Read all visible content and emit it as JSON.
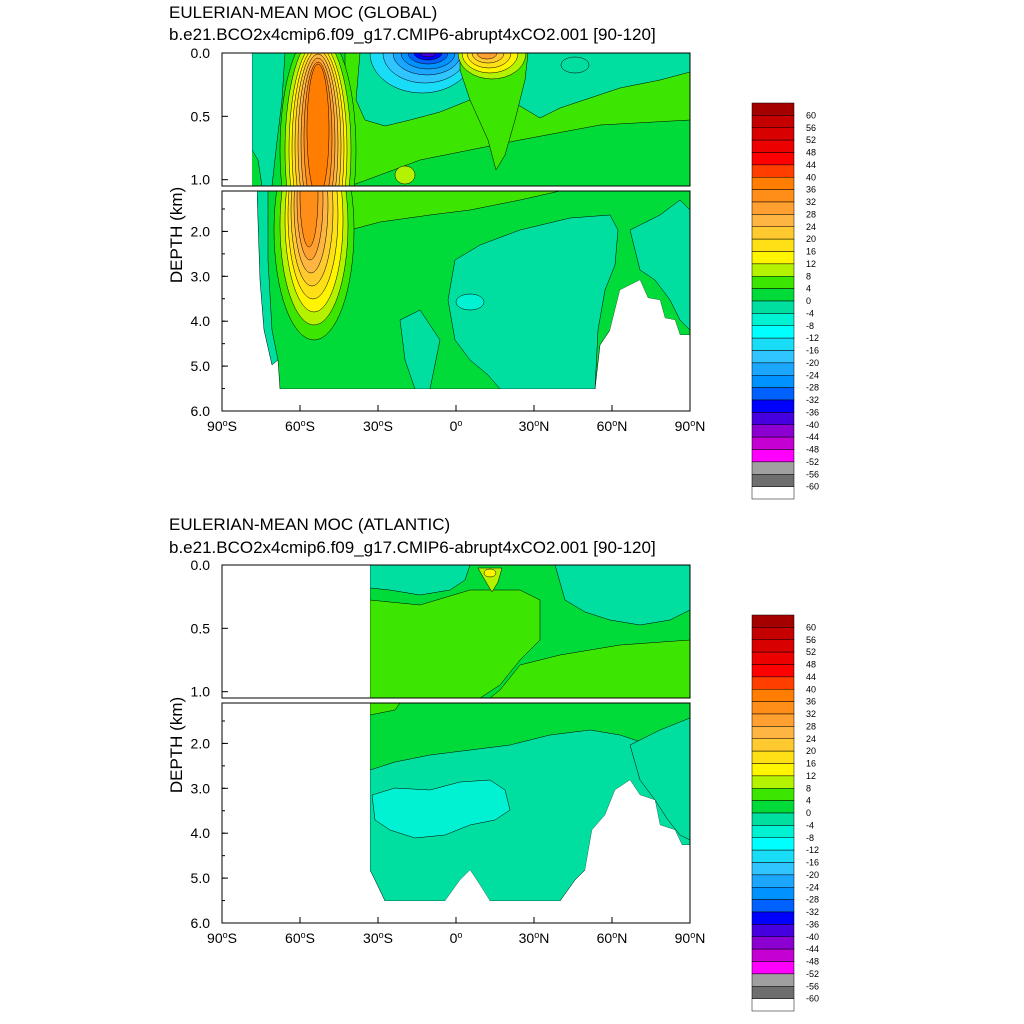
{
  "chart_data": [
    {
      "type": "contour",
      "title": "EULERIAN-MEAN MOC (GLOBAL)",
      "subtitle": "b.e21.BCO2x4cmip6.f09_g17.CMIP6-abrupt4xCO2.001 [90-120]",
      "ylabel": "DEPTH (km)",
      "xlim": [
        -90,
        90
      ],
      "ylim": [
        6.0,
        0.0
      ],
      "x_ticks": [
        "90°S",
        "60°S",
        "30°S",
        "0°",
        "30°N",
        "60°N",
        "90°N"
      ],
      "y_ticks_upper": [
        "0.0",
        "0.5",
        "1.0"
      ],
      "y_ticks_lower": [
        "2.0",
        "3.0",
        "4.0",
        "5.0",
        "6.0"
      ],
      "features": [
        {
          "name": "southern ocean cell",
          "lat": -55,
          "depth": 0.3,
          "max": 40
        },
        {
          "name": "tropical negative cell",
          "lat": -12,
          "depth": 0.05,
          "min": -36
        },
        {
          "name": "tropical positive cell",
          "lat": 10,
          "depth": 0.05,
          "max": 20
        },
        {
          "name": "deep negative cell",
          "lat": 20,
          "depth": 3.5,
          "min": -8
        }
      ]
    },
    {
      "type": "contour",
      "title": "EULERIAN-MEAN MOC (ATLANTIC)",
      "subtitle": "b.e21.BCO2x4cmip6.f09_g17.CMIP6-abrupt4xCO2.001 [90-120]",
      "ylabel": "DEPTH (km)",
      "xlim": [
        -90,
        90
      ],
      "ylim": [
        6.0,
        0.0
      ],
      "x_ticks": [
        "90°S",
        "60°S",
        "30°S",
        "0°",
        "30°N",
        "60°N",
        "90°N"
      ],
      "y_ticks_upper": [
        "0.0",
        "0.5",
        "1.0"
      ],
      "y_ticks_lower": [
        "2.0",
        "3.0",
        "4.0",
        "5.0",
        "6.0"
      ],
      "features": [
        {
          "name": "upper positive cell",
          "lat": 13,
          "depth": 0.1,
          "max": 12
        },
        {
          "name": "deep negative cell",
          "lat": -10,
          "depth": 3.6,
          "min": -8
        }
      ]
    }
  ],
  "colorbar": {
    "labels": [
      "60",
      "56",
      "52",
      "48",
      "44",
      "40",
      "36",
      "32",
      "28",
      "24",
      "20",
      "16",
      "12",
      "8",
      "4",
      "0",
      "-4",
      "-8",
      "-12",
      "-16",
      "-20",
      "-24",
      "-28",
      "-32",
      "-36",
      "-40",
      "-44",
      "-48",
      "-52",
      "-56",
      "-60"
    ],
    "colors": [
      "#a50000",
      "#c40000",
      "#d80000",
      "#ec0000",
      "#ff0000",
      "#ff3e00",
      "#ff7d00",
      "#ff8e18",
      "#ffa030",
      "#ffb541",
      "#ffca30",
      "#ffdf15",
      "#fff500",
      "#b5f200",
      "#3ce600",
      "#00db3a",
      "#00dea0",
      "#00f2d2",
      "#00ffff",
      "#19ddf6",
      "#30c5ff",
      "#1ca7ff",
      "#0093ff",
      "#0061ff",
      "#0000ff",
      "#4600e0",
      "#8b00d0",
      "#c400d2",
      "#ff00ff",
      "#a0a0a0",
      "#6e6e6e",
      "#ffffff"
    ]
  }
}
